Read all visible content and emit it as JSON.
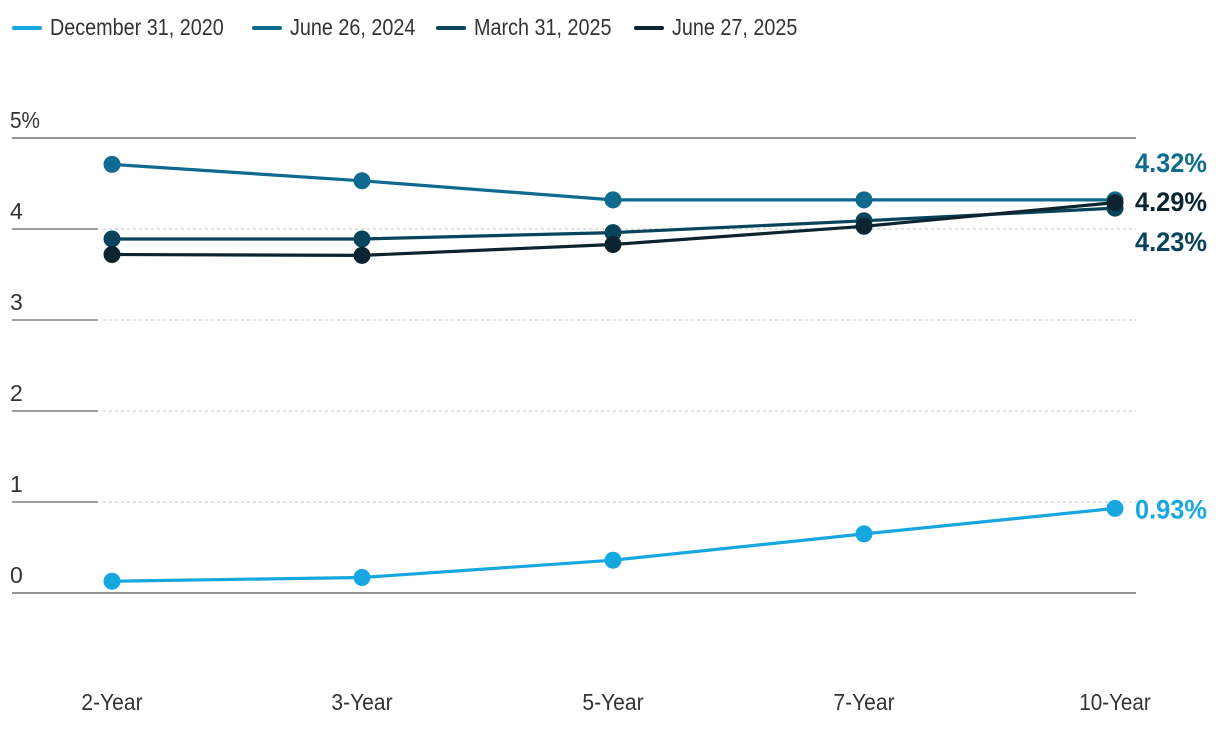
{
  "chart_data": {
    "type": "line",
    "categories": [
      "2-Year",
      "3-Year",
      "5-Year",
      "7-Year",
      "10-Year"
    ],
    "series": [
      {
        "name": "December 31, 2020",
        "color": "#16a7e0",
        "values": [
          0.13,
          0.17,
          0.36,
          0.65,
          0.93
        ],
        "end_label": "0.93%"
      },
      {
        "name": "June 26, 2024",
        "color": "#0e6a8e",
        "values": [
          4.71,
          4.53,
          4.32,
          4.32,
          4.32
        ],
        "end_label": "4.32%"
      },
      {
        "name": "March 31, 2025",
        "color": "#07445b",
        "values": [
          3.89,
          3.89,
          3.96,
          4.09,
          4.23
        ],
        "end_label": "4.23%"
      },
      {
        "name": "June 27, 2025",
        "color": "#0b2430",
        "values": [
          3.72,
          3.71,
          3.83,
          4.03,
          4.29
        ],
        "end_label": "4.29%"
      }
    ],
    "y_ticks": [
      "0",
      "1",
      "2",
      "3",
      "4",
      "5%"
    ],
    "ylim": [
      0,
      5
    ],
    "grid": true,
    "legend_position": "top-left",
    "title": "",
    "xlabel": "",
    "ylabel": ""
  }
}
